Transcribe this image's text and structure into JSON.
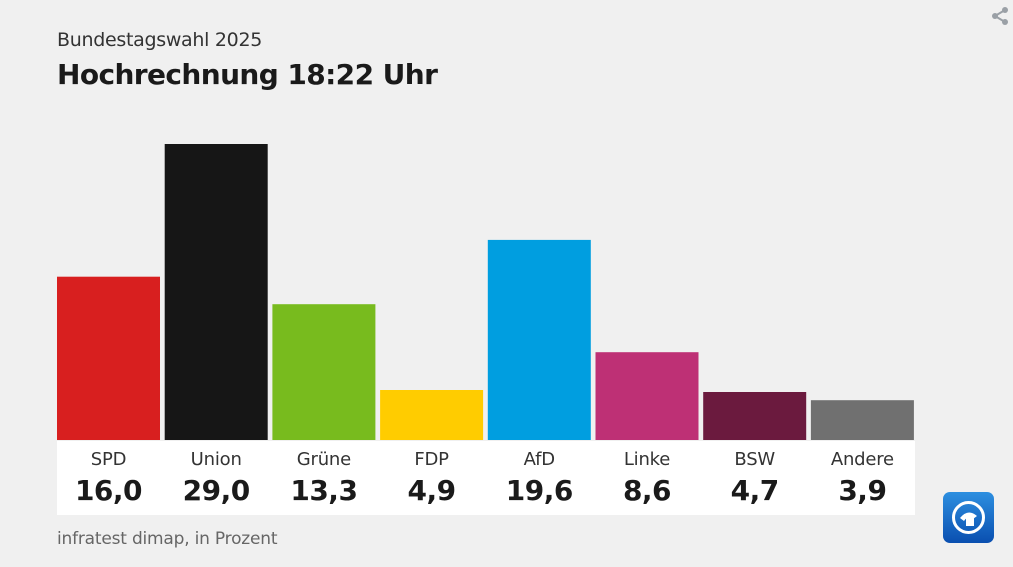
{
  "header": {
    "subtitle": "Bundestagswahl 2025",
    "title": "Hochrechnung 18:22 Uhr"
  },
  "chart_data": {
    "type": "bar",
    "title": "Hochrechnung 18:22 Uhr",
    "subtitle": "Bundestagswahl 2025",
    "categories": [
      "SPD",
      "Union",
      "Grüne",
      "FDP",
      "AfD",
      "Linke",
      "BSW",
      "Andere"
    ],
    "values": [
      16.0,
      29.0,
      13.3,
      4.9,
      19.6,
      8.6,
      4.7,
      3.9
    ],
    "value_labels": [
      "16,0",
      "29,0",
      "13,3",
      "4,9",
      "19,6",
      "8,6",
      "4,7",
      "3,9"
    ],
    "colors": [
      "#d81f1f",
      "#161616",
      "#78bb1e",
      "#ffcc00",
      "#009ee0",
      "#be3075",
      "#6b1a3e",
      "#707070"
    ],
    "xlabel": "",
    "ylabel": "",
    "ylim": [
      0,
      29.0
    ],
    "grid": false
  },
  "footer": {
    "source": "infratest dimap, in Prozent"
  },
  "icons": {
    "share": "share-icon",
    "logo": "tagesschau-logo-icon"
  }
}
